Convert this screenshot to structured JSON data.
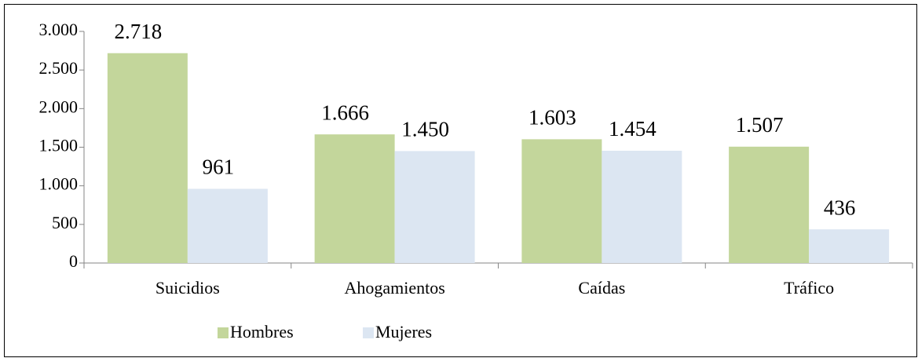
{
  "chart_data": {
    "type": "bar",
    "categories": [
      "Suicidios",
      "Ahogamientos",
      "Caídas",
      "Tráfico"
    ],
    "series": [
      {
        "name": "Hombres",
        "color": "#c3d69b",
        "values": [
          2718,
          1666,
          1603,
          1507
        ],
        "value_labels": [
          "2.718",
          "1.666",
          "1.603",
          "1.507"
        ]
      },
      {
        "name": "Mujeres",
        "color": "#dce6f2",
        "values": [
          961,
          1450,
          1454,
          436
        ],
        "value_labels": [
          "961",
          "1.450",
          "1.454",
          "436"
        ]
      }
    ],
    "ylim": [
      0,
      3000
    ],
    "yticks": [
      0,
      500,
      {
        "value": 1000,
        "label": "1.000"
      },
      {
        "value": 1500,
        "label": "1.500"
      },
      {
        "value": 2000,
        "label": "2.000"
      },
      {
        "value": 2500,
        "label": "2.500"
      },
      {
        "value": 3000,
        "label": "3.000"
      }
    ],
    "grid": false,
    "legend": "bottom"
  }
}
